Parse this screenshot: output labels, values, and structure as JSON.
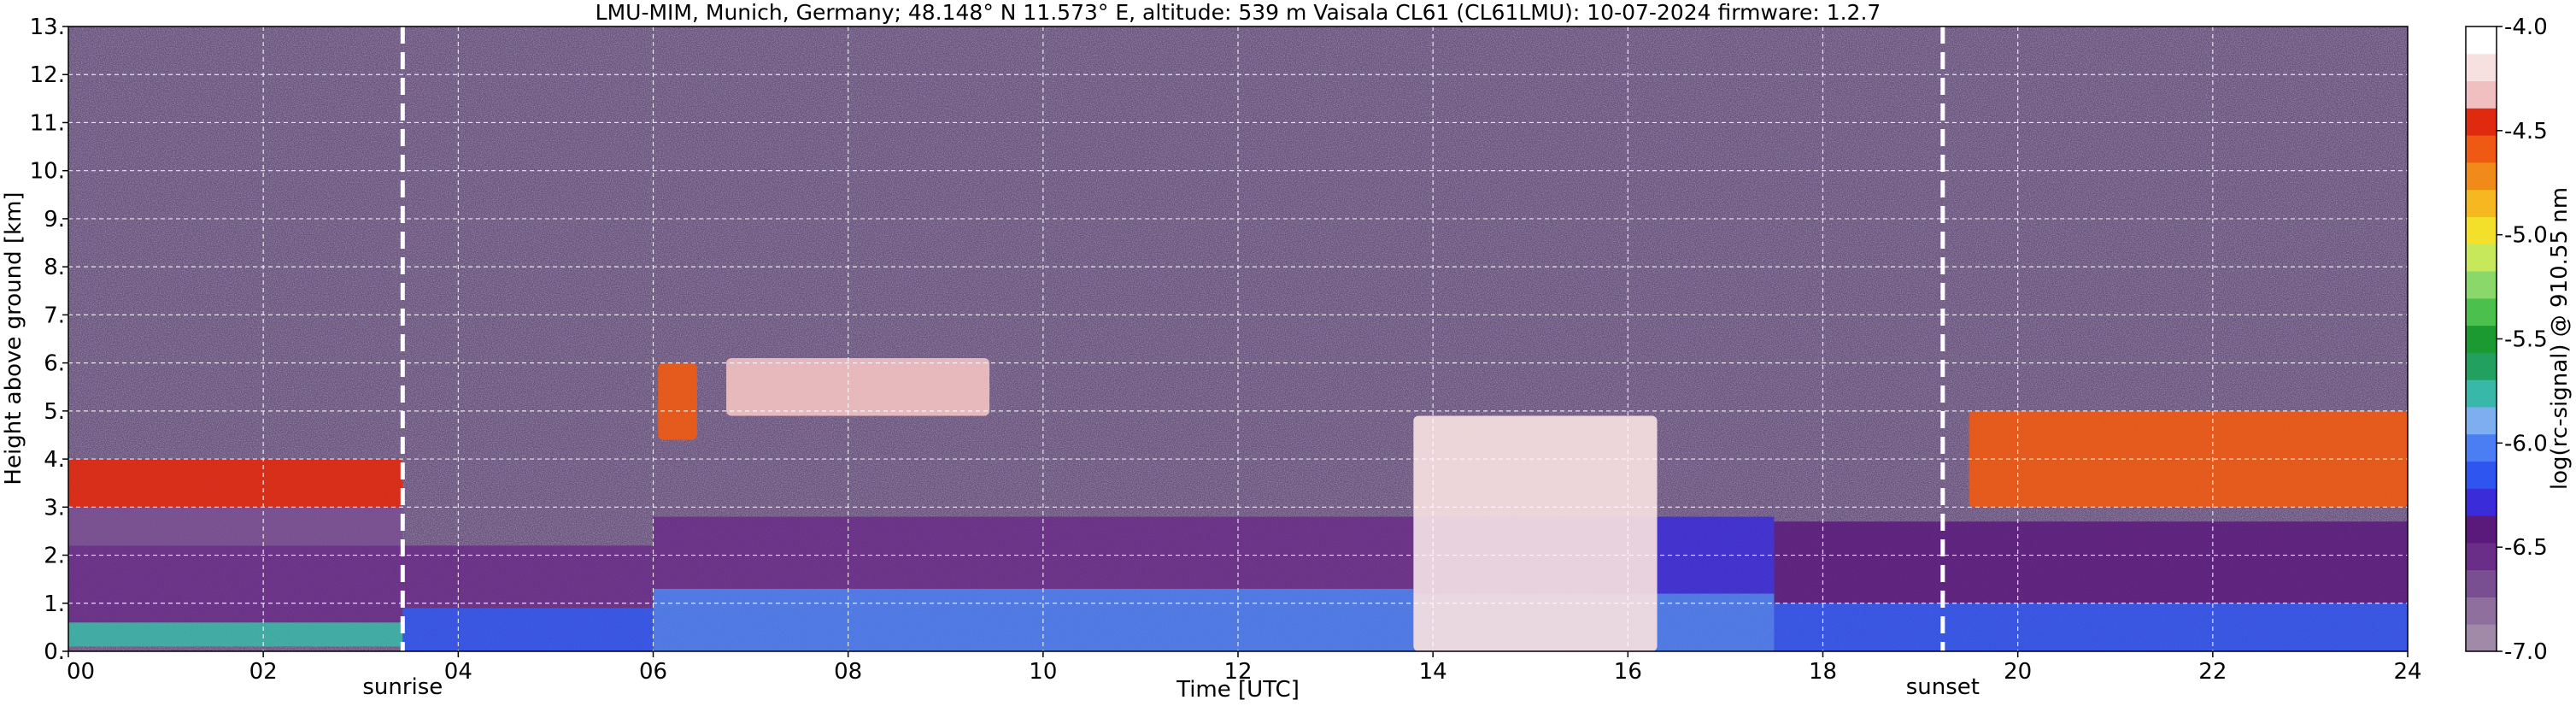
{
  "chart_data": {
    "type": "heatmap",
    "title": "LMU-MIM, Munich, Germany; 48.148° N 11.573° E, altitude: 539 m    Vaisala CL61 (CL61LMU): 10-07-2024    firmware: 1.2.7",
    "xlabel": "Time [UTC]",
    "ylabel": "Height above ground [km]",
    "colorbar_label": "log(rc-signal) @ 910.55 nm",
    "xlim": [
      0,
      24
    ],
    "ylim": [
      0,
      13
    ],
    "clim": [
      -7.0,
      -4.0
    ],
    "grid": true,
    "x_ticks": [
      0,
      2,
      4,
      6,
      8,
      10,
      12,
      14,
      16,
      18,
      20,
      22,
      24
    ],
    "x_tick_labels": [
      "00",
      "02",
      "04",
      "06",
      "08",
      "10",
      "12",
      "14",
      "16",
      "18",
      "20",
      "22",
      "24"
    ],
    "y_ticks": [
      0,
      1,
      2,
      3,
      4,
      5,
      6,
      7,
      8,
      9,
      10,
      11,
      12,
      13
    ],
    "y_tick_labels": [
      "0.",
      "1.",
      "2.",
      "3.",
      "4.",
      "5.",
      "6.",
      "7.",
      "8.",
      "9.",
      "10.",
      "11.",
      "12.",
      "13."
    ],
    "colorbar_ticks": [
      -7.0,
      -6.5,
      -6.0,
      -5.5,
      -5.0,
      -4.5,
      -4.0
    ],
    "colorbar_tick_labels": [
      "-7.0",
      "-6.5",
      "-6.0",
      "-5.5",
      "-5.0",
      "-4.5",
      "-4.0"
    ],
    "colormap": [
      "#a08aa8",
      "#8e6f9e",
      "#7a4f92",
      "#6a2d88",
      "#5a1a7c",
      "#3b2cd9",
      "#2f55f0",
      "#4a7ef2",
      "#7faef0",
      "#38b8a8",
      "#21a060",
      "#1a9a30",
      "#4cc04c",
      "#8ad86a",
      "#c6e85a",
      "#f2e02a",
      "#f5b820",
      "#f08a18",
      "#ee5a14",
      "#e02a10",
      "#f0c0c0",
      "#f6e0e0",
      "#ffffff"
    ],
    "markers": [
      {
        "name": "sunrise",
        "x": 3.43
      },
      {
        "name": "sunset",
        "x": 19.23
      }
    ],
    "layers": [
      {
        "kind": "aerosol",
        "t0": 0,
        "t1": 3.43,
        "h0": 0.1,
        "h1": 0.6,
        "value": -5.7
      },
      {
        "kind": "aerosol",
        "t0": 0,
        "t1": 3.43,
        "h0": 0.6,
        "h1": 2.2,
        "value": -6.5
      },
      {
        "kind": "aerosol",
        "t0": 0,
        "t1": 3.43,
        "h0": 2.2,
        "h1": 3.0,
        "value": -6.7
      },
      {
        "kind": "aerosol",
        "t0": 3.43,
        "t1": 6.0,
        "h0": 0.0,
        "h1": 0.9,
        "value": -6.1
      },
      {
        "kind": "aerosol",
        "t0": 3.43,
        "t1": 6.0,
        "h0": 0.9,
        "h1": 2.2,
        "value": -6.6
      },
      {
        "kind": "aerosol",
        "t0": 6.0,
        "t1": 13.8,
        "h0": 0.0,
        "h1": 1.3,
        "value": -6.0
      },
      {
        "kind": "aerosol",
        "t0": 6.0,
        "t1": 13.8,
        "h0": 1.3,
        "h1": 2.8,
        "value": -6.6
      },
      {
        "kind": "aerosol",
        "t0": 13.8,
        "t1": 17.5,
        "h0": 0.0,
        "h1": 1.2,
        "value": -6.0
      },
      {
        "kind": "aerosol",
        "t0": 13.8,
        "t1": 17.5,
        "h0": 1.2,
        "h1": 2.8,
        "value": -6.3
      },
      {
        "kind": "aerosol",
        "t0": 17.5,
        "t1": 24.0,
        "h0": 0.0,
        "h1": 1.0,
        "value": -6.1
      },
      {
        "kind": "aerosol",
        "t0": 17.5,
        "t1": 24.0,
        "h0": 1.0,
        "h1": 2.7,
        "value": -6.4
      },
      {
        "kind": "cloud",
        "t0": 13.8,
        "t1": 16.3,
        "h0": 0.0,
        "h1": 4.9,
        "value": -4.2
      },
      {
        "kind": "cloud",
        "t0": 6.05,
        "t1": 6.45,
        "h0": 4.4,
        "h1": 6.0,
        "value": -4.6
      },
      {
        "kind": "cloud",
        "t0": 6.75,
        "t1": 9.45,
        "h0": 4.9,
        "h1": 6.1,
        "value": -4.3
      },
      {
        "kind": "cloud",
        "t0": 0.0,
        "t1": 3.43,
        "h0": 3.0,
        "h1": 4.0,
        "value": -4.4
      },
      {
        "kind": "cloud",
        "t0": 19.5,
        "t1": 24.0,
        "h0": 3.0,
        "h1": 5.0,
        "value": -4.6
      }
    ]
  }
}
